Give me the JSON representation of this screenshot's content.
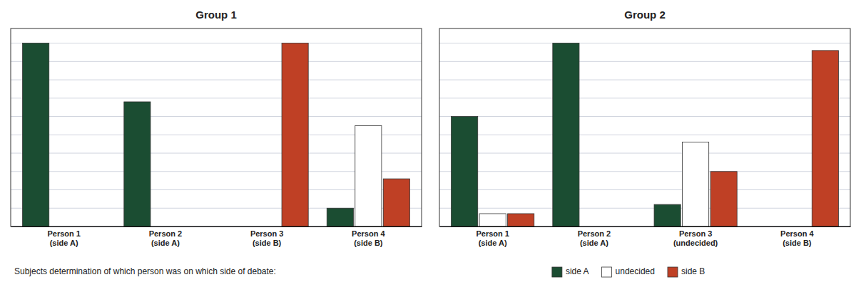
{
  "chart_data": [
    {
      "type": "bar",
      "title": "Group 1",
      "categories": [
        "Person 1\n(side A)",
        "Person 2\n(side A)",
        "Person 3\n(side B)",
        "Person 4\n(side B)"
      ],
      "series": [
        {
          "name": "side A",
          "color": "#1b4d32",
          "values": [
            100,
            68,
            0,
            10
          ]
        },
        {
          "name": "undecided",
          "color": "#ffffff",
          "values": [
            0,
            0,
            0,
            55
          ]
        },
        {
          "name": "side B",
          "color": "#bf4025",
          "values": [
            0,
            0,
            100,
            26
          ]
        }
      ],
      "ylim": [
        0,
        108
      ],
      "yticks": [
        0,
        10,
        20,
        30,
        40,
        50,
        60,
        70,
        80,
        90,
        100
      ],
      "grid": true,
      "tick_labels": "x",
      "legend": "bottom",
      "annotations": [
        "Subjects determination of which person was on which side of debate:"
      ]
    },
    {
      "type": "bar",
      "title": "Group 2",
      "categories": [
        "Person 1\n(side A)",
        "Person 2\n(side A)",
        "Person 3\n(undecided)",
        "Person 4\n(side B)"
      ],
      "series": [
        {
          "name": "side A",
          "color": "#1b4d32",
          "values": [
            60,
            100,
            12,
            0
          ]
        },
        {
          "name": "undecided",
          "color": "#ffffff",
          "values": [
            7,
            0,
            46,
            0
          ]
        },
        {
          "name": "side B",
          "color": "#bf4025",
          "values": [
            7,
            0,
            30,
            96
          ]
        }
      ],
      "ylim": [
        0,
        108
      ],
      "yticks": [
        0,
        10,
        20,
        30,
        40,
        50,
        60,
        70,
        80,
        90,
        100
      ],
      "grid": true,
      "tick_labels": "x"
    }
  ]
}
